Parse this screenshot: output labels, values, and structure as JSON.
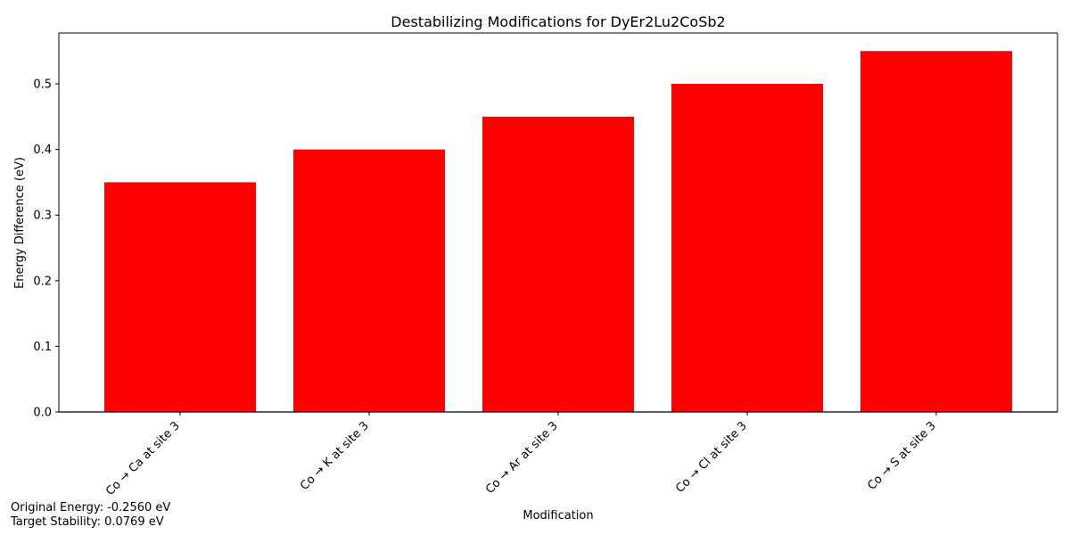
{
  "chart_data": {
    "type": "bar",
    "title": "Destabilizing Modifications for DyEr2Lu2CoSb2",
    "xlabel": "Modification",
    "ylabel": "Energy Difference (eV)",
    "categories": [
      "Co → Ca at site 3",
      "Co → K at site 3",
      "Co → Ar at site 3",
      "Co → Cl at site 3",
      "Co → S at site 3"
    ],
    "values": [
      0.35,
      0.4,
      0.45,
      0.5,
      0.55
    ],
    "ylim": [
      0,
      0.5775
    ],
    "yticks": [
      "0.0",
      "0.1",
      "0.2",
      "0.3",
      "0.4",
      "0.5"
    ],
    "ytick_values": [
      0,
      0.1,
      0.2,
      0.3,
      0.4,
      0.5
    ],
    "bar_color": "#ff0000",
    "grid": false,
    "baseline_line": true
  },
  "notes": {
    "original_energy": "Original Energy: -0.2560 eV",
    "target_stability": "Target Stability: 0.0769 eV"
  }
}
